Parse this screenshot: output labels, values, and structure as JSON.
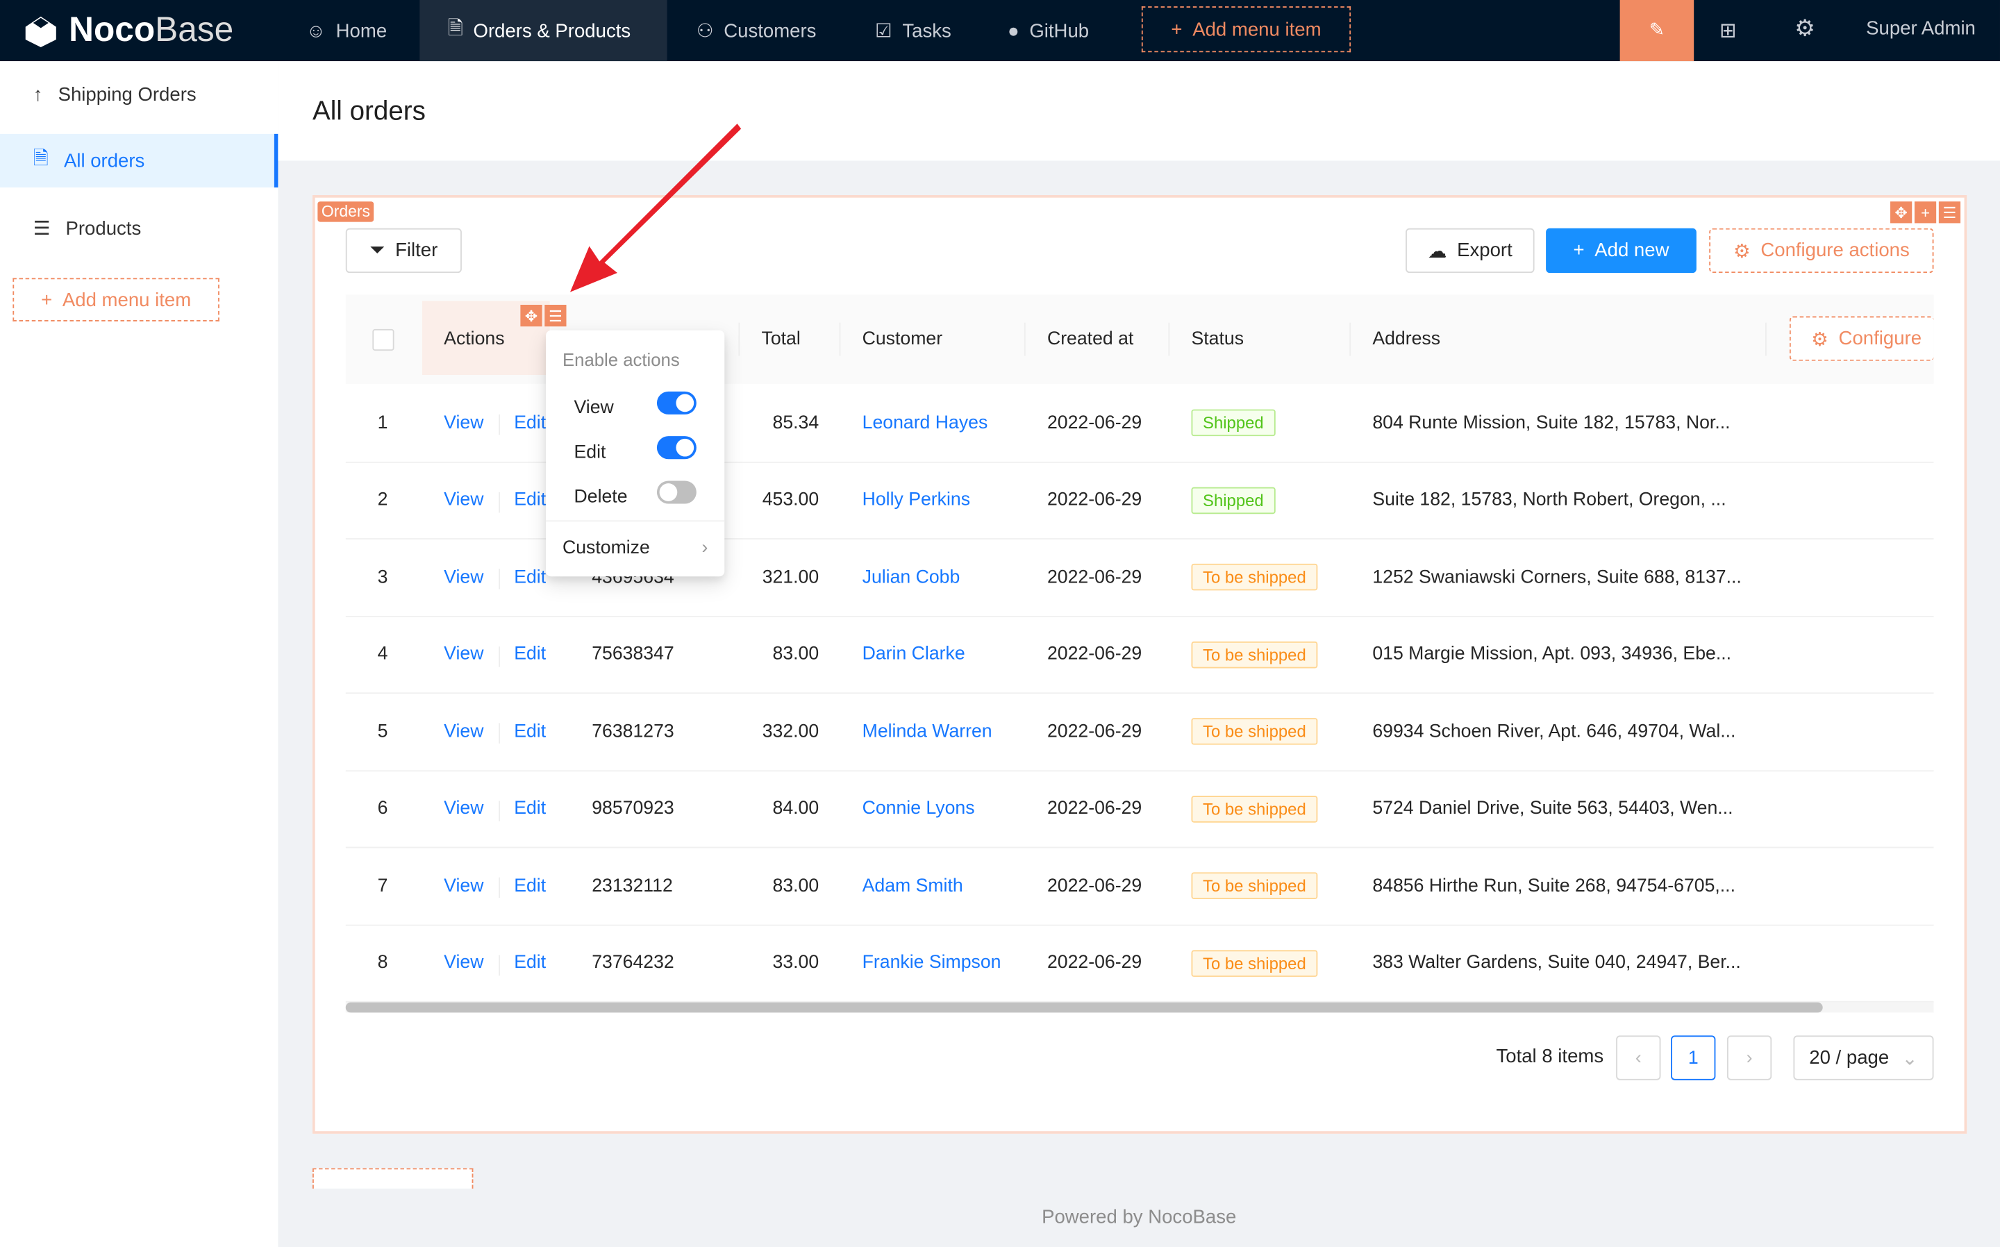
{
  "nav": {
    "brand": {
      "bold": "Noco",
      "light": "Base"
    },
    "items": [
      {
        "label": "Home",
        "icon": "smile-icon"
      },
      {
        "label": "Orders & Products",
        "icon": "file-check-icon",
        "active": true
      },
      {
        "label": "Customers",
        "icon": "user-icon"
      },
      {
        "label": "Tasks",
        "icon": "checkbox-icon"
      },
      {
        "label": "GitHub",
        "icon": "github-icon"
      }
    ],
    "add_menu_item": "Add menu item",
    "user": "Super Admin"
  },
  "sidebar": {
    "items": [
      {
        "label": "Shipping Orders",
        "icon": "arrow-up-icon"
      },
      {
        "label": "All orders",
        "icon": "file-check-icon",
        "selected": true
      },
      {
        "label": "Products",
        "icon": "list-icon"
      }
    ],
    "add_menu_item": "Add menu item"
  },
  "page": {
    "title": "All orders"
  },
  "block": {
    "tag": "Orders",
    "filter": "Filter",
    "export": "Export",
    "add_new": "Add new",
    "configure_actions": "Configure actions",
    "columns": [
      "Actions",
      "Total",
      "Customer",
      "Created at",
      "Status",
      "Address"
    ],
    "configure_columns": "Configure",
    "row_actions": [
      "View",
      "Edit"
    ],
    "rows": [
      {
        "n": "1",
        "order": "",
        "total": "85.34",
        "customer": "Leonard Hayes",
        "created": "2022-06-29",
        "status": "Shipped",
        "address": "804 Runte Mission, Suite 182, 15783, Nor..."
      },
      {
        "n": "2",
        "order": "",
        "total": "453.00",
        "customer": "Holly Perkins",
        "created": "2022-06-29",
        "status": "Shipped",
        "address": "Suite 182, 15783, North Robert, Oregon, ..."
      },
      {
        "n": "3",
        "order": "43695634",
        "total": "321.00",
        "customer": "Julian Cobb",
        "created": "2022-06-29",
        "status": "To be shipped",
        "address": "1252 Swaniawski Corners, Suite 688, 8137..."
      },
      {
        "n": "4",
        "order": "75638347",
        "total": "83.00",
        "customer": "Darin Clarke",
        "created": "2022-06-29",
        "status": "To be shipped",
        "address": "015 Margie Mission, Apt. 093, 34936, Ebe..."
      },
      {
        "n": "5",
        "order": "76381273",
        "total": "332.00",
        "customer": "Melinda Warren",
        "created": "2022-06-29",
        "status": "To be shipped",
        "address": "69934 Schoen River, Apt. 646, 49704, Wal..."
      },
      {
        "n": "6",
        "order": "98570923",
        "total": "84.00",
        "customer": "Connie Lyons",
        "created": "2022-06-29",
        "status": "To be shipped",
        "address": "5724 Daniel Drive, Suite 563, 54403, Wen..."
      },
      {
        "n": "7",
        "order": "23132112",
        "total": "83.00",
        "customer": "Adam Smith",
        "created": "2022-06-29",
        "status": "To be shipped",
        "address": "84856 Hirthe Run, Suite 268, 94754-6705,..."
      },
      {
        "n": "8",
        "order": "73764232",
        "total": "33.00",
        "customer": "Frankie Simpson",
        "created": "2022-06-29",
        "status": "To be shipped",
        "address": "383 Walter Gardens, Suite 040, 24947, Ber..."
      }
    ],
    "pagination": {
      "total": "Total 8 items",
      "page": "1",
      "page_size": "20 / page"
    },
    "horizontal_scroll_fraction": 0.93
  },
  "popup": {
    "title": "Enable actions",
    "toggles": [
      {
        "label": "View",
        "on": true
      },
      {
        "label": "Edit",
        "on": true
      },
      {
        "label": "Delete",
        "on": false
      }
    ],
    "customize": "Customize"
  },
  "footer": "Powered by NocoBase",
  "colors": {
    "nav_bg": "#001529",
    "accent": "#1677ff",
    "design_orange": "#f18b62",
    "annotation_arrow": "#e8202a"
  }
}
